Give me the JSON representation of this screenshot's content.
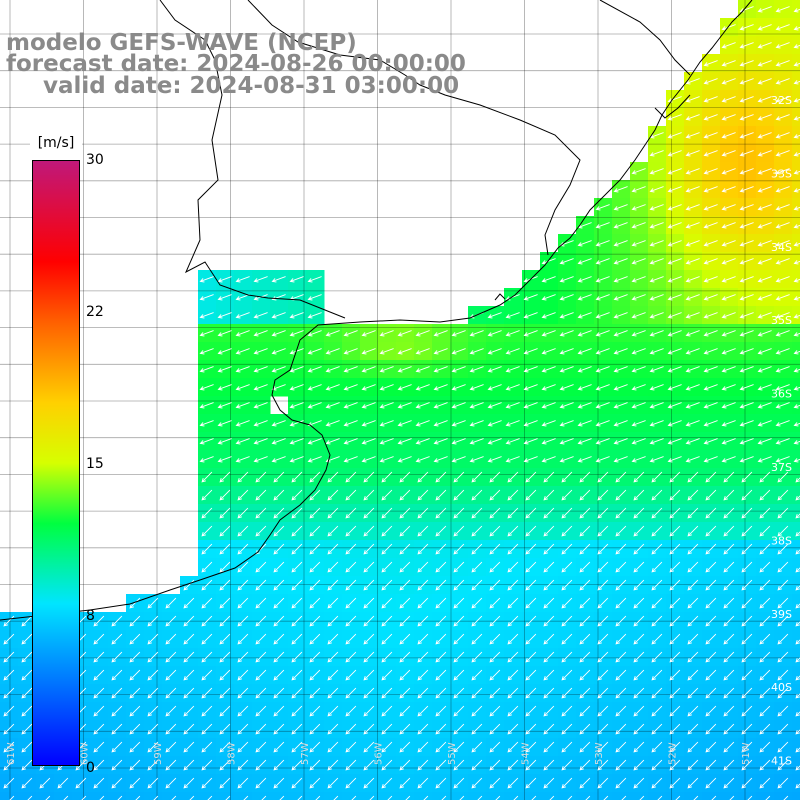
{
  "title": {
    "line1": "modelo GEFS-WAVE (NCEP)",
    "line2": "forecast date: 2024-08-26 00:00:00",
    "line3": "valid date: 2024-08-31 03:00:00"
  },
  "colorbar": {
    "unit": "[m/s]",
    "ticks": [
      "30",
      "22",
      "15",
      "8",
      "0"
    ],
    "stops": [
      {
        "value": 0,
        "color": "#0000ff"
      },
      {
        "value": 8,
        "color": "#00e5ff"
      },
      {
        "value": 12,
        "color": "#00ff40"
      },
      {
        "value": 15,
        "color": "#d6ff00"
      },
      {
        "value": 18,
        "color": "#ffd000"
      },
      {
        "value": 22,
        "color": "#ff6000"
      },
      {
        "value": 25,
        "color": "#ff0000"
      },
      {
        "value": 30,
        "color": "#c0187a"
      }
    ]
  },
  "map": {
    "lat_labels": [
      "32S",
      "33S",
      "34S",
      "35S",
      "36S",
      "37S",
      "38S",
      "39S",
      "40S",
      "41S"
    ],
    "lon_labels": [
      "61W",
      "60W",
      "59W",
      "58W",
      "57W",
      "56W",
      "55W",
      "54W",
      "53W",
      "52W",
      "51W"
    ],
    "wind_direction": "from north-east"
  }
}
